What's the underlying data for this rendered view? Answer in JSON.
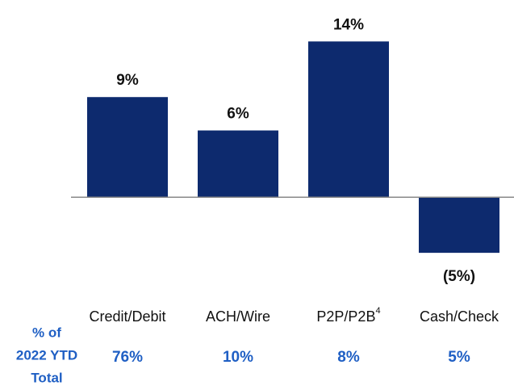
{
  "chart_data": {
    "type": "bar",
    "categories": [
      "Credit/Debit",
      "ACH/Wire",
      "P2P/P2B",
      "Cash/Check"
    ],
    "category_superscripts": [
      null,
      null,
      "4",
      null
    ],
    "values": [
      9,
      6,
      14,
      -5
    ],
    "value_labels": [
      "9%",
      "6%",
      "14%",
      "(5%)"
    ],
    "color": "#0d2a6e",
    "ylim": [
      -10,
      17
    ],
    "share_row": {
      "label": [
        "% of",
        "2022 YTD",
        "Total"
      ],
      "values": [
        76,
        10,
        8,
        5
      ],
      "value_labels": [
        "76%",
        "10%",
        "8%",
        "5%"
      ],
      "color": "#1f5fc4"
    }
  }
}
